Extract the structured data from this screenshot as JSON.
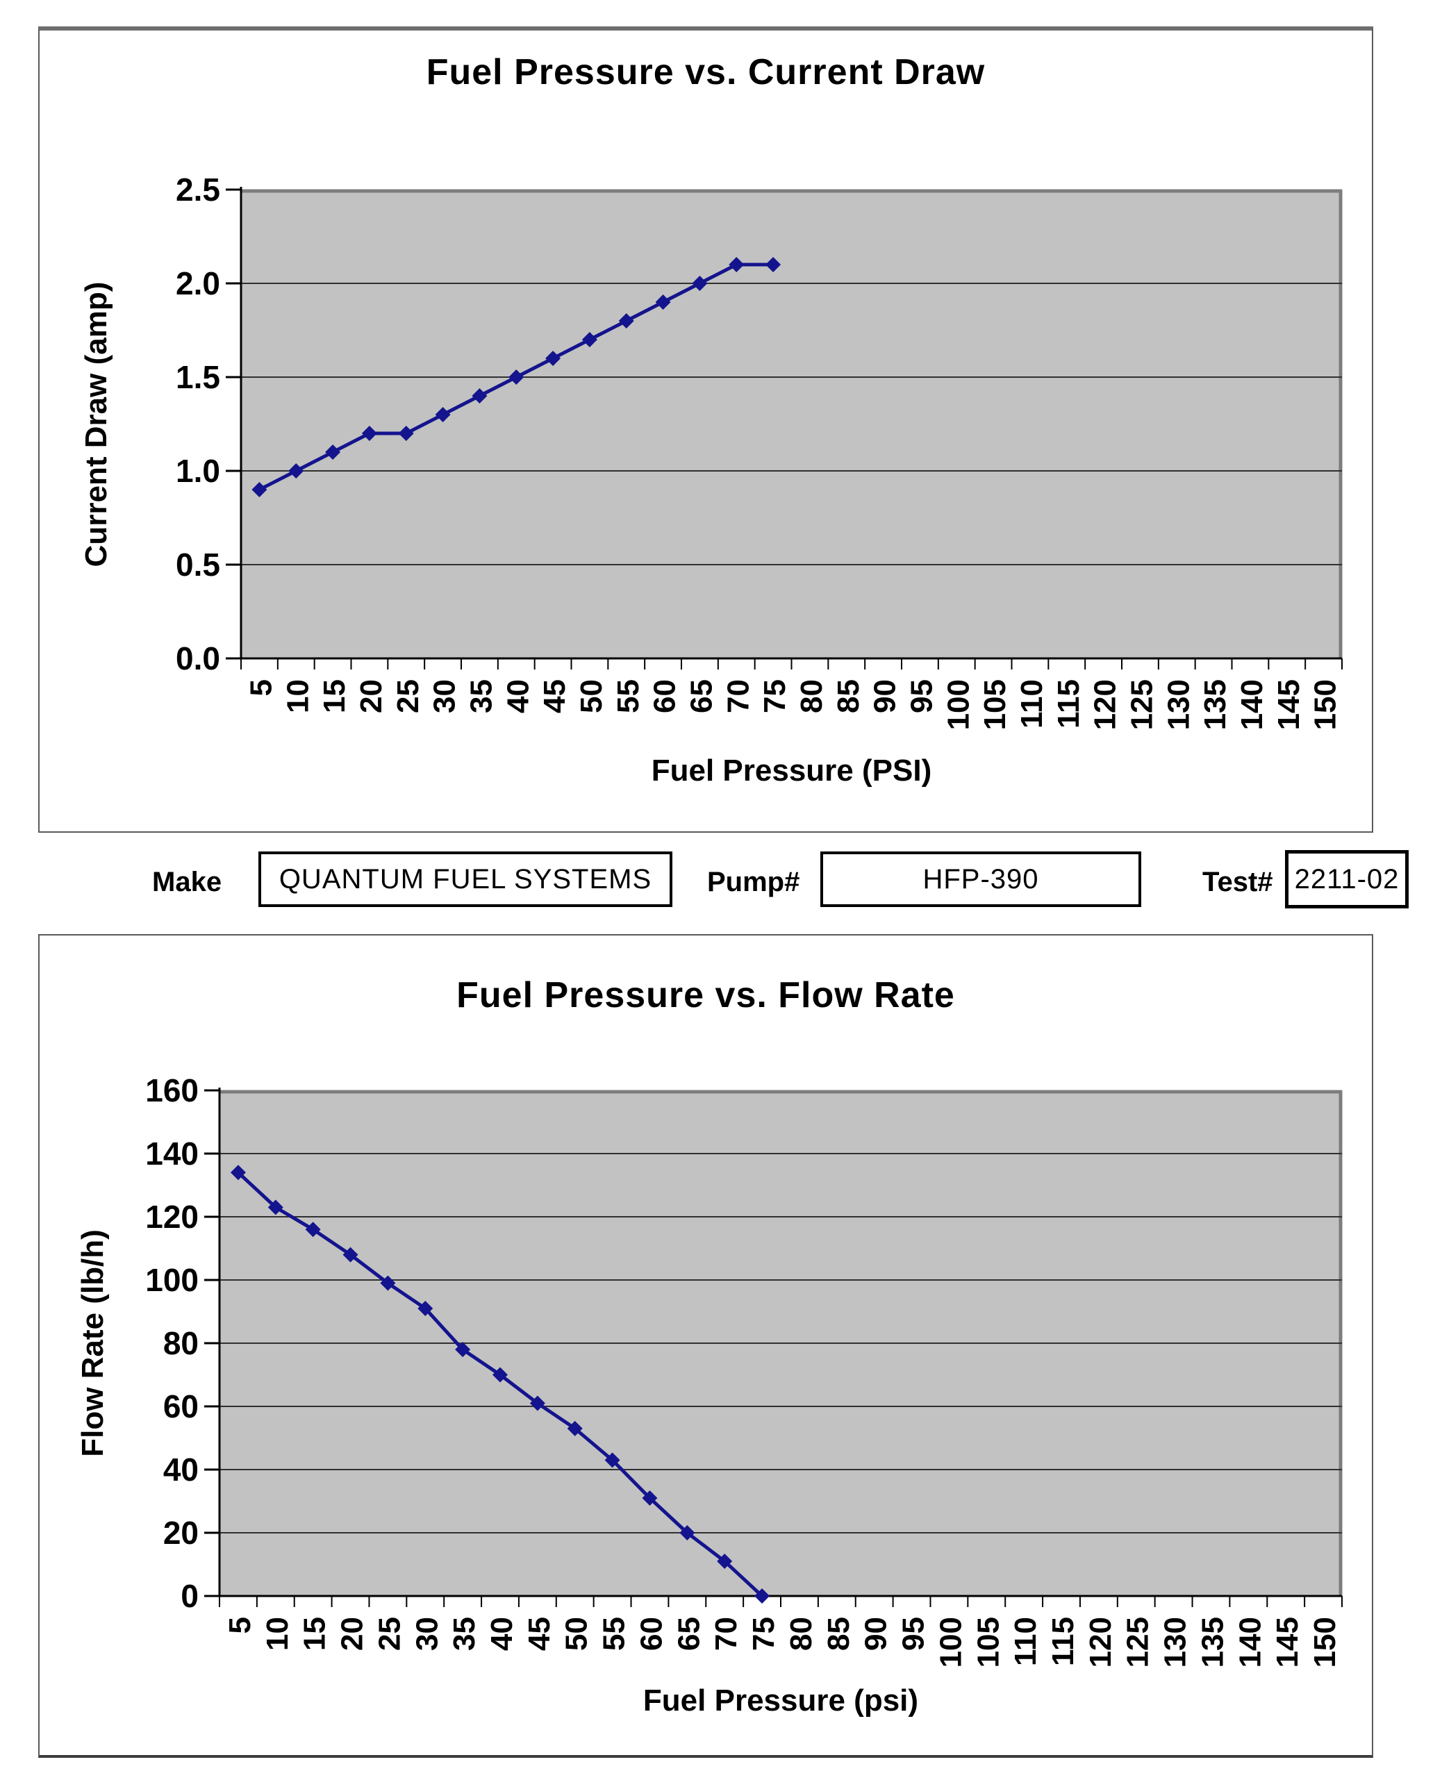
{
  "fields": {
    "make_label": "Make",
    "make_value": "QUANTUM FUEL SYSTEMS",
    "pump_label": "Pump#",
    "pump_value": "HFP-390",
    "test_label": "Test#",
    "test_value": "2211-02"
  },
  "chart_data": [
    {
      "type": "line",
      "title": "Fuel Pressure vs. Current Draw",
      "xlabel": "Fuel Pressure (PSI)",
      "ylabel": "Current Draw (amp)",
      "categories": [
        5,
        10,
        15,
        20,
        25,
        30,
        35,
        40,
        45,
        50,
        55,
        60,
        65,
        70,
        75,
        80,
        85,
        90,
        95,
        100,
        105,
        110,
        115,
        120,
        125,
        130,
        135,
        140,
        145,
        150
      ],
      "ylim": [
        0,
        2.5
      ],
      "ytick_labels": [
        "0.0",
        "0.5",
        "1.0",
        "1.5",
        "2.0",
        "2.5"
      ],
      "grid": true,
      "legend": false,
      "marker": "diamond",
      "series": [
        {
          "name": "Current Draw (amp)",
          "x": [
            5,
            10,
            15,
            20,
            25,
            30,
            35,
            40,
            45,
            50,
            55,
            60,
            65,
            70,
            75
          ],
          "values": [
            0.9,
            1.0,
            1.1,
            1.2,
            1.2,
            1.3,
            1.4,
            1.5,
            1.6,
            1.7,
            1.8,
            1.9,
            2.0,
            2.1,
            2.1
          ]
        }
      ],
      "colors": {
        "line": "#14148e",
        "plot_bg": "#c2c2c2",
        "gridline": "#303030",
        "axis": "#000000",
        "plot_shadow": "#7d7d7d"
      }
    },
    {
      "type": "line",
      "title": "Fuel Pressure vs. Flow Rate",
      "xlabel": "Fuel Pressure (psi)",
      "ylabel": "Flow Rate (lb/h)",
      "categories": [
        5,
        10,
        15,
        20,
        25,
        30,
        35,
        40,
        45,
        50,
        55,
        60,
        65,
        70,
        75,
        80,
        85,
        90,
        95,
        100,
        105,
        110,
        115,
        120,
        125,
        130,
        135,
        140,
        145,
        150
      ],
      "ylim": [
        0,
        160
      ],
      "ytick_labels": [
        "0",
        "20",
        "40",
        "60",
        "80",
        "100",
        "120",
        "140",
        "160"
      ],
      "grid": true,
      "legend": false,
      "marker": "diamond",
      "series": [
        {
          "name": "Flow Rate (lb/h)",
          "x": [
            5,
            10,
            15,
            20,
            25,
            30,
            35,
            40,
            45,
            50,
            55,
            60,
            65,
            70,
            75
          ],
          "values": [
            134,
            123,
            116,
            108,
            99,
            91,
            78,
            70,
            61,
            53,
            43,
            31,
            20,
            11,
            0
          ]
        }
      ],
      "colors": {
        "line": "#14148e",
        "plot_bg": "#c2c2c2",
        "gridline": "#303030",
        "axis": "#000000",
        "plot_shadow": "#7d7d7d"
      }
    }
  ]
}
